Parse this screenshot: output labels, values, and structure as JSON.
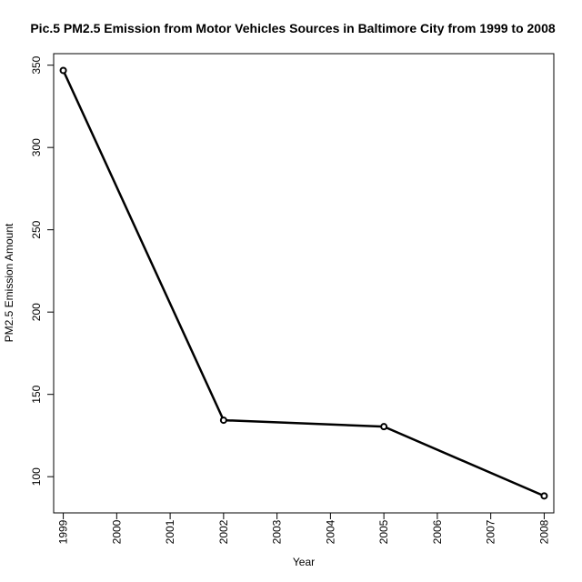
{
  "chart_data": {
    "type": "line",
    "title": "Pic.5 PM2.5 Emission from Motor Vehicles Sources in Baltimore City from 1999 to 2008",
    "xlabel": "Year",
    "ylabel": "PM2.5 Emission Amount",
    "x": [
      1999,
      2002,
      2005,
      2008
    ],
    "y": [
      346.8,
      134.3,
      130.4,
      88.3
    ],
    "xlim": [
      1998.82,
      2008.18
    ],
    "ylim": [
      78,
      357
    ],
    "xticks": [
      1999,
      2000,
      2001,
      2002,
      2003,
      2004,
      2005,
      2006,
      2007,
      2008
    ],
    "yticks": [
      100,
      150,
      200,
      250,
      300,
      350
    ],
    "line_color": "#000000",
    "marker": "open-circle",
    "grid": false,
    "legend": "none"
  }
}
